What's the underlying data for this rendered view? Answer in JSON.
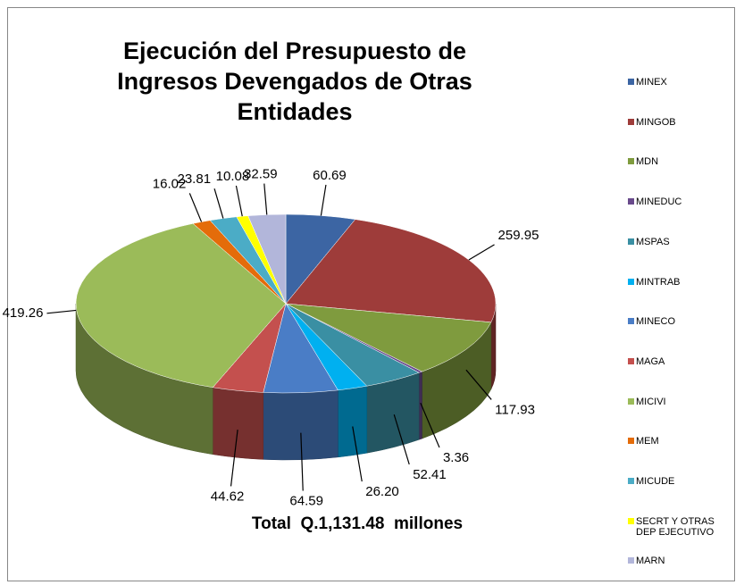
{
  "chart_data": {
    "type": "pie",
    "title": "Ejecución del Presupuesto de Ingresos Devengados de Otras Entidades",
    "total": "Total  Q.1,131.48  millones",
    "categories": [
      "MINEX",
      "MINGOB",
      "MDN",
      "MINEDUC",
      "MSPAS",
      "MINTRAB",
      "MINECO",
      "MAGA",
      "MICIVI",
      "MEM",
      "MICUDE",
      "SECRT Y OTRAS DEP EJECUTIVO",
      "MARN"
    ],
    "values": [
      60.69,
      259.95,
      117.93,
      3.36,
      52.41,
      26.2,
      64.59,
      44.62,
      419.26,
      16.02,
      23.81,
      10.08,
      32.59
    ],
    "value_labels": [
      "60.69",
      "259.95",
      "117.93",
      "3.36",
      "52.41",
      "26.20",
      "64.59",
      "44.62",
      "419.26",
      "16.02",
      "23.81",
      "10.08",
      "32.59"
    ],
    "colors": [
      "#3c65a3",
      "#9e3c3a",
      "#7f9b3e",
      "#694a8c",
      "#3a8fa3",
      "#00b0f0",
      "#4a7dc6",
      "#c4504e",
      "#9bbb59",
      "#e46c0a",
      "#4bacc6",
      "#ffff00",
      "#b2b6da"
    ],
    "legend": "right"
  }
}
